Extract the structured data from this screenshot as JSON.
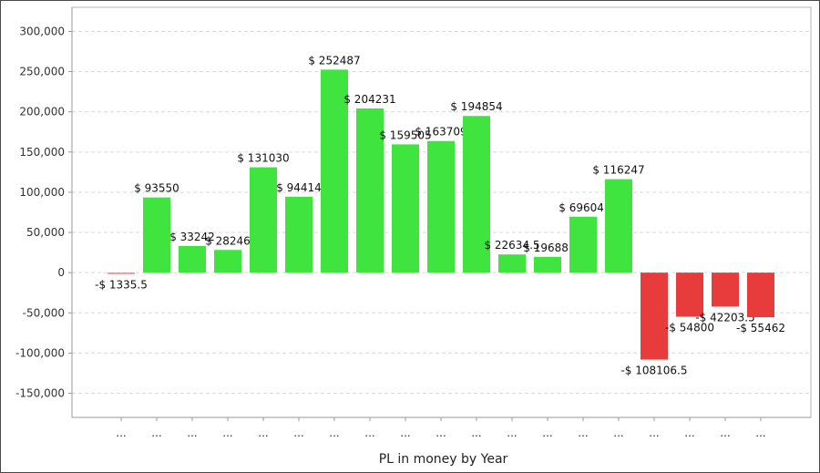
{
  "chart_data": {
    "type": "bar",
    "title": "",
    "xlabel": "PL in money by Year",
    "ylabel": "",
    "ylim": [
      -180000,
      330000
    ],
    "yticks": [
      -150000,
      -100000,
      -50000,
      0,
      50000,
      100000,
      150000,
      200000,
      250000,
      300000
    ],
    "ytick_labels": [
      "-150,000",
      "-100,000",
      "-50,000",
      "0",
      "50,000",
      "100,000",
      "150,000",
      "200,000",
      "250,000",
      "300,000"
    ],
    "grid": true,
    "categories": [
      "...",
      "...",
      "...",
      "...",
      "...",
      "...",
      "...",
      "...",
      "...",
      "...",
      "...",
      "...",
      "...",
      "...",
      "...",
      "...",
      "...",
      "...",
      "..."
    ],
    "values": [
      -1335.5,
      93550,
      33242,
      28246,
      131030,
      94414,
      252487,
      204231,
      159505,
      163709,
      194854,
      22634.5,
      19688,
      69604,
      116247,
      -108106.5,
      -54800,
      -42203.5,
      -55462
    ],
    "data_labels": [
      "-$ 1335.5",
      "$ 93550",
      "$ 33242",
      "$ 28246",
      "$ 131030",
      "$ 94414",
      "$ 252487",
      "$ 204231",
      "$ 159505",
      "$ 163709",
      "$ 194854",
      "$ 22634.5",
      "$ 19688.",
      "$ 69604.",
      "$ 116247",
      "-$ 108106.5",
      "-$ 54800",
      "-$ 42203.5",
      "-$ 55462"
    ],
    "colors": {
      "positive": "#3fe43f",
      "negative": "#e83b3b",
      "small_negative": "#f08080",
      "grid": "#d9d9d9",
      "axis": "#9a9a9a"
    }
  }
}
